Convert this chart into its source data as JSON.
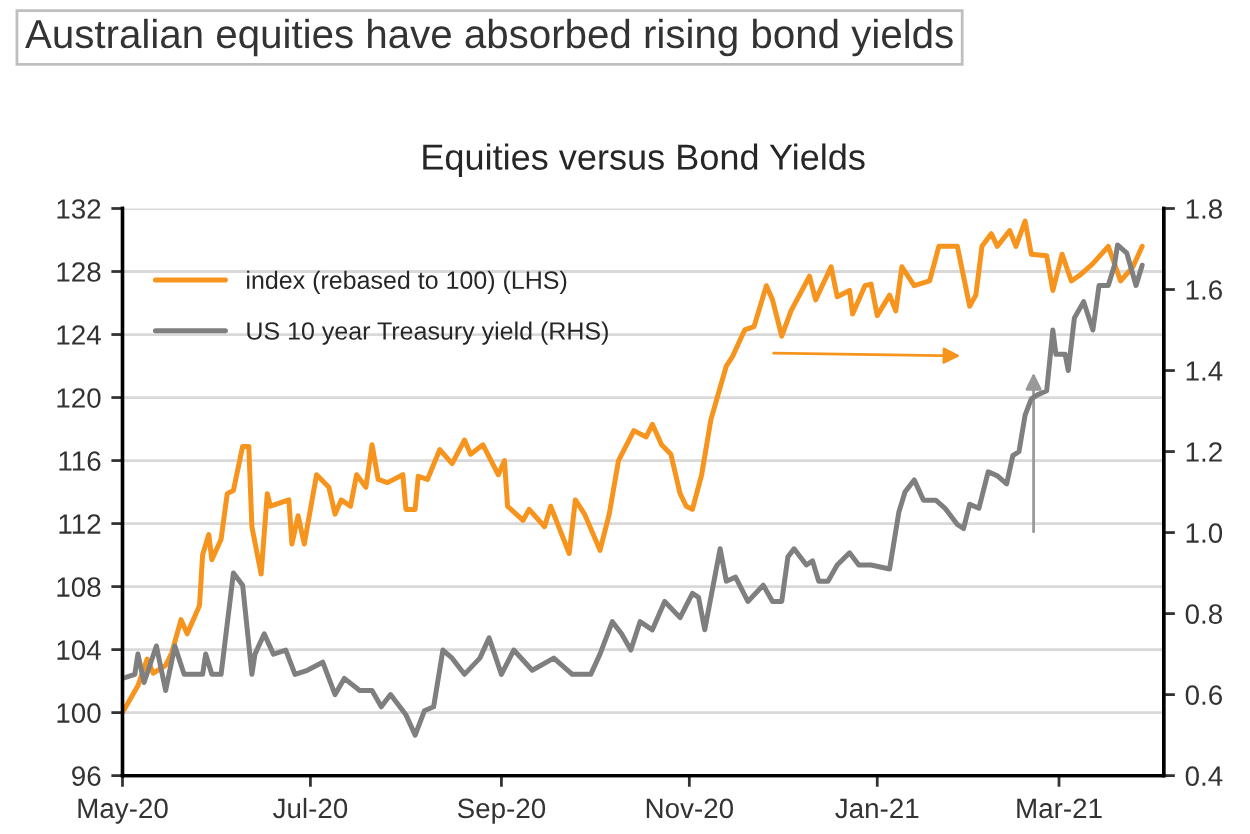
{
  "chart_data": {
    "type": "line",
    "title": "Equities versus Bond Yields",
    "subtitle": "Australian equities have absorbed rising bond yields",
    "xlim": [
      "2020-05-01",
      "2021-04-04"
    ],
    "xticks": [
      {
        "value": "2020-05-01",
        "label": "May-20"
      },
      {
        "value": "2020-07-01",
        "label": "Jul-20"
      },
      {
        "value": "2020-09-01",
        "label": "Sep-20"
      },
      {
        "value": "2020-11-01",
        "label": "Nov-20"
      },
      {
        "value": "2021-01-01",
        "label": "Jan-21"
      },
      {
        "value": "2021-03-01",
        "label": "Mar-21"
      }
    ],
    "ylim": [
      96,
      132
    ],
    "yticks": [
      96,
      100,
      104,
      108,
      112,
      116,
      120,
      124,
      128,
      132
    ],
    "y2lim": [
      0.4,
      1.8
    ],
    "y2ticks": [
      0.4,
      0.6,
      0.8,
      {
        "value": 1,
        "label": "1.0"
      },
      1.2,
      1.4,
      1.6,
      1.8
    ],
    "grid": "y",
    "legend": "top left",
    "line_style": "solid",
    "marker": "none",
    "series": [
      {
        "name": "index (rebased to 100) (LHS)",
        "color": "#f7941d",
        "x": [
          "2020-05-01",
          "2020-05-06",
          "2020-05-09",
          "2020-05-11",
          "2020-05-15",
          "2020-05-17",
          "2020-05-20",
          "2020-05-22",
          "2020-05-26",
          "2020-05-27",
          "2020-05-29",
          "2020-05-30",
          "2020-06-02",
          "2020-06-04",
          "2020-06-06",
          "2020-06-09",
          "2020-06-11",
          "2020-06-12",
          "2020-06-15",
          "2020-06-17",
          "2020-06-18",
          "2020-06-24",
          "2020-06-25",
          "2020-06-27",
          "2020-06-29",
          "2020-07-03",
          "2020-07-07",
          "2020-07-09",
          "2020-07-11",
          "2020-07-14",
          "2020-07-16",
          "2020-07-19",
          "2020-07-21",
          "2020-07-23",
          "2020-07-26",
          "2020-07-31",
          "2020-08-01",
          "2020-08-04",
          "2020-08-05",
          "2020-08-08",
          "2020-08-12",
          "2020-08-16",
          "2020-08-20",
          "2020-08-22",
          "2020-08-26",
          "2020-08-31",
          "2020-09-02",
          "2020-09-03",
          "2020-09-08",
          "2020-09-10",
          "2020-09-15",
          "2020-09-17",
          "2020-09-23",
          "2020-09-25",
          "2020-09-28",
          "2020-10-03",
          "2020-10-06",
          "2020-10-09",
          "2020-10-14",
          "2020-10-18",
          "2020-10-20",
          "2020-10-23",
          "2020-10-26",
          "2020-10-29",
          "2020-10-31",
          "2020-11-02",
          "2020-11-05",
          "2020-11-08",
          "2020-11-13",
          "2020-11-15",
          "2020-11-19",
          "2020-11-22",
          "2020-11-26",
          "2020-11-28",
          "2020-12-01",
          "2020-12-04",
          "2020-12-10",
          "2020-12-12",
          "2020-12-17",
          "2020-12-19",
          "2020-12-23",
          "2020-12-24",
          "2020-12-28",
          "2020-12-30",
          "2021-01-01",
          "2021-01-05",
          "2021-01-07",
          "2021-01-09",
          "2021-01-13",
          "2021-01-18",
          "2021-01-21",
          "2021-01-24",
          "2021-01-27",
          "2021-01-31",
          "2021-02-02",
          "2021-02-04",
          "2021-02-07",
          "2021-02-09",
          "2021-02-13",
          "2021-02-15",
          "2021-02-18",
          "2021-02-20",
          "2021-02-25",
          "2021-02-27",
          "2021-03-02",
          "2021-03-05",
          "2021-03-08",
          "2021-03-12",
          "2021-03-17",
          "2021-03-21",
          "2021-03-25",
          "2021-03-28"
        ],
        "values": [
          100.0,
          101.7,
          103.4,
          102.5,
          103.0,
          103.8,
          105.9,
          105.0,
          106.8,
          110.0,
          111.3,
          109.7,
          111.0,
          113.9,
          114.1,
          116.9,
          116.9,
          111.8,
          108.8,
          113.9,
          113.1,
          113.5,
          110.7,
          112.5,
          110.7,
          115.1,
          114.3,
          112.6,
          113.5,
          113.1,
          115.1,
          114.3,
          117.0,
          114.8,
          114.6,
          115.1,
          112.9,
          112.9,
          115.0,
          114.8,
          116.7,
          115.8,
          117.3,
          116.4,
          117.0,
          115.1,
          116.0,
          113.1,
          112.2,
          112.9,
          111.8,
          113.1,
          110.1,
          113.5,
          112.6,
          110.3,
          112.6,
          116.0,
          117.9,
          117.5,
          118.3,
          117.0,
          116.4,
          113.9,
          113.1,
          112.9,
          115.1,
          118.6,
          122.0,
          122.6,
          124.3,
          124.5,
          127.1,
          126.2,
          123.9,
          125.5,
          127.7,
          126.2,
          128.3,
          126.4,
          126.8,
          125.3,
          127.1,
          127.2,
          125.2,
          126.5,
          125.5,
          128.3,
          127.1,
          127.4,
          129.6,
          129.6,
          129.6,
          125.8,
          126.5,
          129.6,
          130.4,
          129.6,
          130.6,
          129.6,
          131.2,
          129.1,
          129.0,
          126.8,
          129.1,
          127.4,
          127.8,
          128.5,
          129.6,
          127.4,
          128.3,
          129.6
        ]
      },
      {
        "name": "US 10 year Treasury yield (RHS)",
        "color": "#7f7f7f",
        "axis": "y2",
        "x": [
          "2020-05-01",
          "2020-05-05",
          "2020-05-06",
          "2020-05-08",
          "2020-05-12",
          "2020-05-15",
          "2020-05-18",
          "2020-05-21",
          "2020-05-27",
          "2020-05-28",
          "2020-05-30",
          "2020-06-02",
          "2020-06-06",
          "2020-06-09",
          "2020-06-12",
          "2020-06-13",
          "2020-06-16",
          "2020-06-19",
          "2020-06-23",
          "2020-06-26",
          "2020-06-30",
          "2020-07-05",
          "2020-07-09",
          "2020-07-12",
          "2020-07-17",
          "2020-07-21",
          "2020-07-24",
          "2020-07-27",
          "2020-08-01",
          "2020-08-04",
          "2020-08-07",
          "2020-08-10",
          "2020-08-13",
          "2020-08-16",
          "2020-08-20",
          "2020-08-25",
          "2020-08-28",
          "2020-09-01",
          "2020-09-05",
          "2020-09-11",
          "2020-09-18",
          "2020-09-24",
          "2020-09-30",
          "2020-10-03",
          "2020-10-07",
          "2020-10-10",
          "2020-10-13",
          "2020-10-16",
          "2020-10-20",
          "2020-10-24",
          "2020-10-29",
          "2020-11-02",
          "2020-11-04",
          "2020-11-06",
          "2020-11-11",
          "2020-11-13",
          "2020-11-16",
          "2020-11-20",
          "2020-11-25",
          "2020-11-28",
          "2020-12-01",
          "2020-12-03",
          "2020-12-05",
          "2020-12-09",
          "2020-12-11",
          "2020-12-13",
          "2020-12-16",
          "2020-12-19",
          "2020-12-23",
          "2020-12-26",
          "2020-12-30",
          "2021-01-05",
          "2021-01-08",
          "2021-01-10",
          "2021-01-13",
          "2021-01-16",
          "2021-01-20",
          "2021-01-23",
          "2021-01-27",
          "2021-01-29",
          "2021-01-31",
          "2021-02-03",
          "2021-02-06",
          "2021-02-09",
          "2021-02-12",
          "2021-02-14",
          "2021-02-16",
          "2021-02-18",
          "2021-02-20",
          "2021-02-22",
          "2021-02-25",
          "2021-02-27",
          "2021-02-28",
          "2021-03-03",
          "2021-03-04",
          "2021-03-06",
          "2021-03-09",
          "2021-03-12",
          "2021-03-14",
          "2021-03-17",
          "2021-03-19",
          "2021-03-20",
          "2021-03-23",
          "2021-03-26",
          "2021-03-28"
        ],
        "values": [
          0.64,
          0.65,
          0.7,
          0.63,
          0.72,
          0.61,
          0.72,
          0.65,
          0.65,
          0.7,
          0.65,
          0.65,
          0.9,
          0.87,
          0.65,
          0.7,
          0.75,
          0.7,
          0.71,
          0.65,
          0.66,
          0.68,
          0.6,
          0.64,
          0.61,
          0.61,
          0.57,
          0.6,
          0.55,
          0.5,
          0.56,
          0.57,
          0.71,
          0.69,
          0.65,
          0.69,
          0.74,
          0.65,
          0.71,
          0.66,
          0.69,
          0.65,
          0.65,
          0.7,
          0.78,
          0.75,
          0.71,
          0.78,
          0.76,
          0.83,
          0.79,
          0.85,
          0.84,
          0.76,
          0.96,
          0.88,
          0.89,
          0.83,
          0.87,
          0.83,
          0.83,
          0.94,
          0.96,
          0.92,
          0.93,
          0.88,
          0.88,
          0.92,
          0.95,
          0.92,
          0.92,
          0.91,
          1.05,
          1.1,
          1.13,
          1.08,
          1.08,
          1.06,
          1.02,
          1.01,
          1.07,
          1.06,
          1.15,
          1.14,
          1.12,
          1.19,
          1.2,
          1.29,
          1.33,
          1.34,
          1.35,
          1.5,
          1.44,
          1.44,
          1.4,
          1.53,
          1.57,
          1.5,
          1.61,
          1.61,
          1.66,
          1.71,
          1.69,
          1.61,
          1.66
        ]
      }
    ]
  }
}
